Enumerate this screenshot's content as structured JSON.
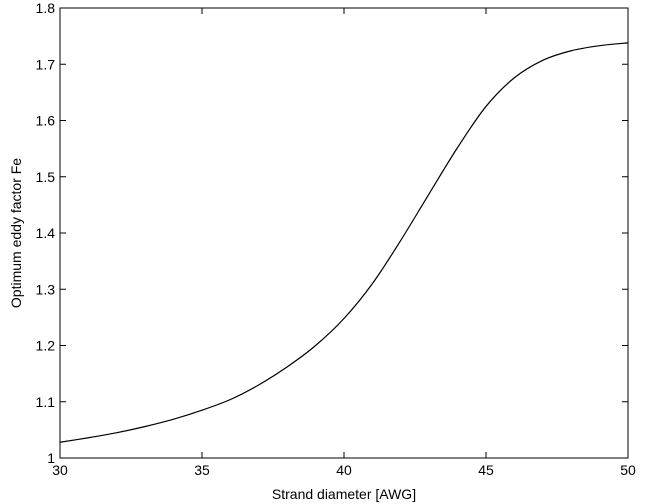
{
  "chart_data": {
    "type": "line",
    "title": "",
    "xlabel": "Strand diameter [AWG]",
    "ylabel": "Optimum eddy factor Fe",
    "xlim": [
      30,
      50
    ],
    "ylim": [
      1,
      1.8
    ],
    "xticks": [
      30,
      35,
      40,
      45,
      50
    ],
    "xtick_labels": [
      "30",
      "35",
      "40",
      "45",
      "50"
    ],
    "yticks": [
      1,
      1.1,
      1.2,
      1.3,
      1.4,
      1.5,
      1.6,
      1.7,
      1.8
    ],
    "ytick_labels": [
      "1",
      "1.1",
      "1.2",
      "1.3",
      "1.4",
      "1.5",
      "1.6",
      "1.7",
      "1.8"
    ],
    "grid": false,
    "colors": {
      "line": "#000000",
      "axes": "#000000",
      "background": "#ffffff"
    },
    "series": [
      {
        "x": [
          30,
          31,
          32,
          33,
          34,
          35,
          36,
          37,
          38,
          39,
          40,
          41,
          42,
          43,
          44,
          45,
          46,
          47,
          48,
          49,
          50
        ],
        "values": [
          1.028,
          1.036,
          1.045,
          1.056,
          1.069,
          1.085,
          1.104,
          1.13,
          1.162,
          1.2,
          1.248,
          1.31,
          1.387,
          1.47,
          1.552,
          1.625,
          1.676,
          1.707,
          1.724,
          1.733,
          1.738
        ]
      }
    ]
  }
}
